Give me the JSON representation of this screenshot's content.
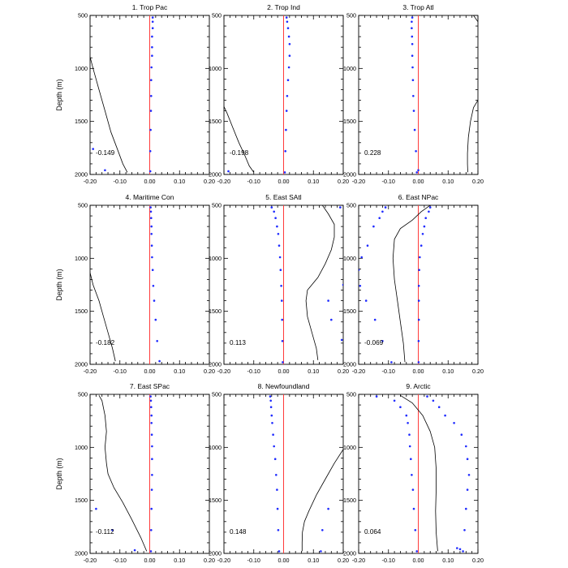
{
  "chart_data": {
    "type": "multi-panel-profile",
    "ylabel": "Depth (m)",
    "xlim": [
      -0.2,
      0.2
    ],
    "ylim": [
      2000,
      500
    ],
    "x_ticks": [
      "-0.20",
      "-0.10",
      "0.00",
      "0.10",
      "0.20"
    ],
    "y_ticks": [
      "500",
      "1000",
      "1500",
      "2000"
    ],
    "x_tick_values": [
      -0.2,
      -0.1,
      0.0,
      0.1,
      0.2
    ],
    "y_tick_values": [
      500,
      1000,
      1500,
      2000
    ],
    "colors": {
      "zero_line": "#ff3b3b",
      "dots": "#1f2bff",
      "curve": "#000000"
    },
    "panels": [
      {
        "title": "1. Trop Pac",
        "value_label": "-0.149",
        "curve": {
          "x": [
            -0.205,
            -0.19,
            -0.17,
            -0.15,
            -0.13,
            -0.11,
            -0.09,
            -0.075
          ],
          "depth": [
            840,
            1000,
            1200,
            1400,
            1600,
            1750,
            1900,
            1980
          ]
        },
        "dots": {
          "x": [
            0.01,
            0.01,
            0.01,
            0.008,
            0.008,
            0.008,
            0.006,
            0.005,
            0.005,
            0.004,
            0.003,
            0.002,
            0.002,
            -0.19,
            -0.15
          ],
          "depth": [
            520,
            560,
            620,
            700,
            800,
            880,
            990,
            1110,
            1260,
            1400,
            1580,
            1780,
            1970,
            1760,
            1960
          ]
        }
      },
      {
        "title": "2. Trop Ind",
        "value_label": "-0.198",
        "curve": {
          "x": [
            -0.205,
            -0.19,
            -0.17,
            -0.15,
            -0.13,
            -0.115,
            -0.1
          ],
          "depth": [
            1330,
            1420,
            1560,
            1700,
            1820,
            1920,
            1980
          ]
        },
        "dots": {
          "x": [
            0.01,
            0.012,
            0.015,
            0.018,
            0.02,
            0.02,
            0.018,
            0.015,
            0.012,
            0.01,
            0.008,
            0.006,
            0.004,
            -0.185
          ],
          "depth": [
            520,
            560,
            620,
            700,
            770,
            880,
            990,
            1110,
            1260,
            1400,
            1580,
            1780,
            1980,
            1970
          ]
        }
      },
      {
        "title": "3. Trop Atl",
        "value_label": "0.228",
        "curve": {
          "x": [
            0.2,
            0.185,
            0.175,
            0.168,
            0.165,
            0.165,
            0.166
          ],
          "depth": [
            1300,
            1370,
            1500,
            1650,
            1800,
            1900,
            1980
          ],
          "top_x": [
            0.185,
            0.2
          ],
          "top_depth": [
            500,
            560
          ]
        },
        "dots": {
          "x": [
            -0.02,
            -0.022,
            -0.022,
            -0.021,
            -0.02,
            -0.02,
            -0.019,
            -0.018,
            -0.017,
            -0.015,
            -0.012,
            -0.008,
            -0.005,
            0.0
          ],
          "depth": [
            520,
            560,
            620,
            700,
            770,
            880,
            990,
            1110,
            1260,
            1400,
            1580,
            1780,
            1980,
            1960
          ]
        }
      },
      {
        "title": "4. Maritime Con",
        "value_label": "-0.182",
        "curve": {
          "x": [
            -0.205,
            -0.19,
            -0.17,
            -0.155,
            -0.14,
            -0.125,
            -0.115
          ],
          "depth": [
            1080,
            1250,
            1400,
            1550,
            1700,
            1850,
            1970
          ]
        },
        "dots": {
          "x": [
            0.003,
            0.004,
            0.005,
            0.006,
            0.006,
            0.007,
            0.008,
            0.01,
            0.012,
            0.015,
            0.02,
            0.025,
            0.033
          ],
          "depth": [
            520,
            560,
            620,
            700,
            770,
            880,
            990,
            1110,
            1260,
            1400,
            1580,
            1780,
            1970
          ]
        }
      },
      {
        "title": "5. East SAtl",
        "value_label": "0.113",
        "curve": {
          "x": [
            0.13,
            0.15,
            0.17,
            0.17,
            0.16,
            0.14,
            0.115,
            0.08,
            0.075,
            0.08,
            0.095,
            0.11,
            0.115
          ],
          "depth": [
            500,
            580,
            680,
            800,
            920,
            1050,
            1180,
            1300,
            1400,
            1550,
            1700,
            1850,
            1960
          ]
        },
        "dots": {
          "x": [
            -0.04,
            -0.032,
            -0.027,
            -0.022,
            -0.018,
            -0.015,
            -0.012,
            -0.01,
            -0.008,
            -0.006,
            -0.005,
            -0.004,
            -0.003,
            0.19,
            0.2,
            0.15,
            0.16,
            0.195
          ],
          "depth": [
            520,
            560,
            620,
            700,
            770,
            880,
            990,
            1110,
            1260,
            1400,
            1580,
            1780,
            1980,
            520,
            1250,
            1400,
            1580,
            1770
          ]
        }
      },
      {
        "title": "6. East NPac",
        "value_label": "-0.069",
        "curve": {
          "x": [
            0.04,
            0.01,
            -0.02,
            -0.06,
            -0.08,
            -0.085,
            -0.08,
            -0.07,
            -0.06,
            -0.05,
            -0.045
          ],
          "depth": [
            500,
            560,
            640,
            720,
            820,
            1000,
            1200,
            1400,
            1600,
            1800,
            1980
          ]
        },
        "dots": {
          "x": [
            -0.11,
            -0.12,
            -0.13,
            -0.15,
            -0.17,
            -0.19,
            -0.2,
            -0.195,
            -0.175,
            -0.145,
            -0.12,
            -0.09,
            0.04,
            0.035,
            0.025,
            0.02,
            0.015,
            0.01,
            0.005,
            0.003,
            0.002,
            0.002,
            0.002,
            0.001,
            0.001
          ],
          "depth": [
            520,
            560,
            620,
            700,
            880,
            990,
            1110,
            1260,
            1400,
            1580,
            1780,
            1980,
            520,
            560,
            620,
            700,
            770,
            880,
            990,
            1110,
            1260,
            1400,
            1580,
            1780,
            1980
          ]
        }
      },
      {
        "title": "7. East SPac",
        "value_label": "-0.112",
        "curve": {
          "x": [
            -0.17,
            -0.16,
            -0.15,
            -0.145,
            -0.15,
            -0.145,
            -0.14,
            -0.12,
            -0.09,
            -0.06,
            -0.03,
            -0.01
          ],
          "depth": [
            510,
            560,
            700,
            850,
            1000,
            1150,
            1250,
            1380,
            1520,
            1680,
            1850,
            1980
          ]
        },
        "dots": {
          "x": [
            0.003,
            0.004,
            0.005,
            0.006,
            0.006,
            0.007,
            0.008,
            0.008,
            0.008,
            0.007,
            0.006,
            0.005,
            0.004,
            -0.18,
            -0.125,
            -0.05
          ],
          "depth": [
            520,
            560,
            620,
            700,
            770,
            880,
            990,
            1110,
            1260,
            1400,
            1580,
            1780,
            1980,
            1580,
            1780,
            1970
          ]
        }
      },
      {
        "title": "8. Newfoundland",
        "value_label": "0.148",
        "curve": {
          "x": [
            0.2,
            0.17,
            0.14,
            0.11,
            0.085,
            0.07,
            0.063,
            0.062,
            0.062
          ],
          "depth": [
            1020,
            1150,
            1300,
            1450,
            1600,
            1700,
            1800,
            1900,
            1980
          ]
        },
        "dots": {
          "x": [
            -0.045,
            -0.043,
            -0.042,
            -0.04,
            -0.038,
            -0.035,
            -0.032,
            -0.028,
            -0.025,
            -0.022,
            -0.02,
            -0.018,
            -0.015,
            0.15,
            0.13,
            0.125
          ],
          "depth": [
            520,
            560,
            620,
            700,
            770,
            880,
            990,
            1110,
            1260,
            1400,
            1580,
            1780,
            1980,
            1580,
            1780,
            1980
          ]
        }
      },
      {
        "title": "9. Arctic",
        "value_label": "0.064",
        "curve": {
          "x": [
            -0.06,
            -0.02,
            0.015,
            0.04,
            0.055,
            0.06,
            0.06,
            0.058,
            0.06,
            0.065
          ],
          "depth": [
            510,
            580,
            700,
            850,
            1000,
            1200,
            1400,
            1600,
            1800,
            1980
          ]
        },
        "dots": {
          "x": [
            -0.14,
            -0.08,
            -0.06,
            -0.04,
            -0.035,
            -0.03,
            -0.028,
            -0.025,
            -0.022,
            -0.018,
            -0.015,
            -0.01,
            -0.005,
            0.03,
            0.05,
            0.07,
            0.09,
            0.12,
            0.145,
            0.16,
            0.165,
            0.17,
            0.165,
            0.16,
            0.155,
            0.15,
            0.14,
            0.13
          ],
          "depth": [
            520,
            560,
            620,
            700,
            770,
            880,
            990,
            1110,
            1260,
            1400,
            1580,
            1780,
            1980,
            520,
            560,
            620,
            700,
            770,
            880,
            990,
            1110,
            1260,
            1400,
            1580,
            1780,
            1980,
            1960,
            1950
          ]
        }
      }
    ]
  }
}
